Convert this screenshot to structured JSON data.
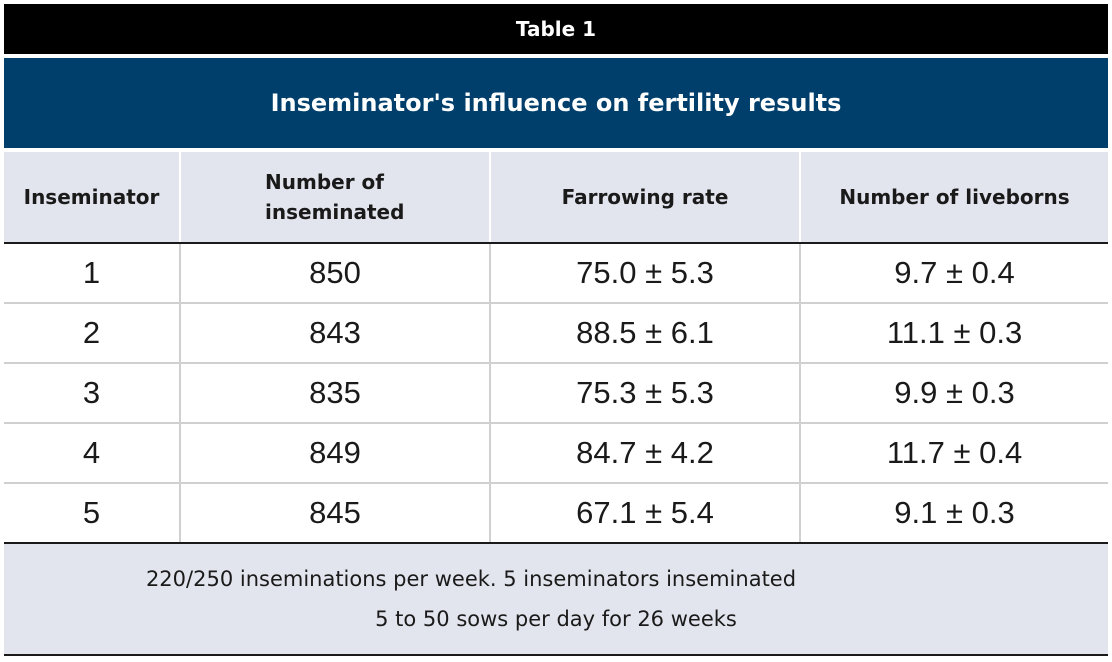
{
  "table": {
    "label": "Table 1",
    "title": "Inseminator's influence on fertility results",
    "columns": [
      "Inseminator",
      "Number of inseminated",
      "Farrowing rate",
      "Number of liveborns"
    ],
    "rows": [
      [
        "1",
        "850",
        "75.0 ± 5.3",
        "9.7 ± 0.4"
      ],
      [
        "2",
        "843",
        "88.5 ± 6.1",
        "11.1 ± 0.3"
      ],
      [
        "3",
        "835",
        "75.3 ± 5.3",
        "9.9 ± 0.3"
      ],
      [
        "4",
        "849",
        "84.7 ± 4.2",
        "11.7 ± 0.4"
      ],
      [
        "5",
        "845",
        "67.1 ± 5.4",
        "9.1 ± 0.3"
      ]
    ],
    "footnote": {
      "line1": "220/250 inseminations per week. 5 inseminators inseminated",
      "line2": "5 to 50 sows per day for 26 weeks"
    }
  },
  "colors": {
    "caption_bg": "#000000",
    "title_bg": "#003f6b",
    "header_bg": "#e3e5ee"
  }
}
